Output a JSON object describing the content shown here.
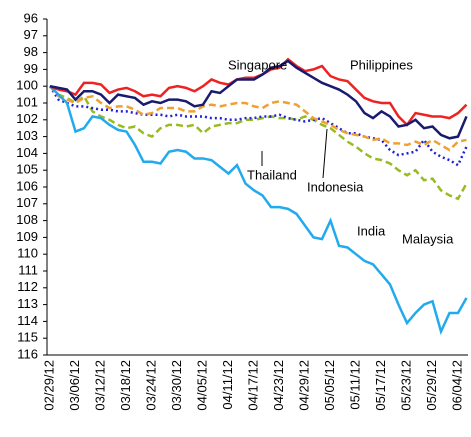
{
  "chart_data": {
    "type": "line",
    "categories": [
      "02/29/12",
      null,
      null,
      "03/06/12",
      null,
      null,
      "03/12/12",
      null,
      null,
      "03/18/12",
      null,
      null,
      "03/24/12",
      null,
      null,
      "03/30/12",
      null,
      null,
      "04/05/12",
      null,
      null,
      "04/11/12",
      null,
      null,
      "04/17/12",
      null,
      null,
      "04/23/12",
      null,
      null,
      "04/29/12",
      null,
      null,
      "05/05/12",
      null,
      null,
      "05/11/12",
      null,
      null,
      "05/17/12",
      null,
      null,
      "05/23/12",
      null,
      null,
      "05/29/12",
      null,
      null,
      "06/04/12",
      null
    ],
    "series": [
      {
        "name": "Singapore",
        "color": "#1a1a6e",
        "style": "solid",
        "values": [
          100,
          100.1,
          100.2,
          100.8,
          100.3,
          100.3,
          100.5,
          101,
          100.5,
          100.6,
          100.7,
          101.1,
          100.9,
          101,
          100.8,
          100.8,
          100.9,
          101.2,
          101.1,
          100.3,
          100.4,
          100,
          99.6,
          99.6,
          99.6,
          99.3,
          98.9,
          98.8,
          98.5,
          98.9,
          99.2,
          99.5,
          99.8,
          100,
          100.2,
          100.5,
          100.9,
          101.6,
          101.9,
          101.5,
          101.8,
          102.4,
          102.3,
          102,
          102.5,
          102.4,
          102.9,
          103.1,
          103,
          101.8
        ]
      },
      {
        "name": "Philippines",
        "color": "#ee2222",
        "style": "solid",
        "values": [
          100,
          100.2,
          100.3,
          100.5,
          99.8,
          99.8,
          99.9,
          100.4,
          100.2,
          100.1,
          100.3,
          100.6,
          100.5,
          100.6,
          100.1,
          100,
          100.1,
          100.3,
          100,
          99.6,
          99.8,
          99.9,
          99.6,
          99.5,
          99.5,
          99.3,
          99,
          98.9,
          98.4,
          98.8,
          99.1,
          99,
          98.8,
          99.4,
          99.6,
          99.7,
          100.2,
          100.7,
          100.9,
          101,
          101,
          101.8,
          102.3,
          101.6,
          101.7,
          101.8,
          101.8,
          101.9,
          101.6,
          101.1
        ]
      },
      {
        "name": "Thailand",
        "color": "#f0a030",
        "style": "dashed",
        "values": [
          100,
          100.6,
          100.8,
          101,
          100.7,
          100.6,
          101,
          101.3,
          101.2,
          101.2,
          101.4,
          101.7,
          101.6,
          101.3,
          101.3,
          101.3,
          101.5,
          101.5,
          101.2,
          101.1,
          101.2,
          101.1,
          101,
          101,
          101.2,
          101.3,
          101,
          100.9,
          101,
          101.1,
          101.5,
          101.9,
          102.1,
          102.3,
          102.6,
          102.8,
          102.9,
          103,
          103.2,
          103.1,
          103.4,
          103.4,
          103.5,
          103.3,
          103.5,
          103.2,
          103.5,
          103.8,
          103.3,
          103.2
        ]
      },
      {
        "name": "Indonesia",
        "color": "#2020dd",
        "style": "dotted",
        "values": [
          100,
          100.8,
          101,
          101.2,
          101.2,
          101.3,
          101.4,
          101.4,
          101.5,
          101.5,
          101.6,
          101.7,
          101.7,
          101.7,
          101.8,
          101.7,
          101.8,
          101.8,
          101.8,
          101.9,
          101.9,
          102,
          102,
          101.9,
          101.9,
          101.8,
          101.8,
          101.7,
          101.9,
          102,
          102.1,
          102,
          101.9,
          102.2,
          102.5,
          102.8,
          102.8,
          103,
          103.1,
          103.2,
          103.8,
          104.1,
          104,
          103.9,
          103.2,
          103.9,
          104.2,
          104.4,
          104.7,
          103.6
        ]
      },
      {
        "name": "Malaysia",
        "color": "#99bb22",
        "style": "dashed",
        "values": [
          100,
          100.5,
          100.7,
          101,
          100.6,
          101.5,
          101.8,
          102,
          102.3,
          102.5,
          102.4,
          102.8,
          103,
          102.5,
          102.3,
          102.3,
          102.4,
          102.3,
          102.8,
          102.4,
          102.3,
          102.2,
          102.2,
          102,
          102,
          101.9,
          101.8,
          101.9,
          101.9,
          102,
          101.8,
          102,
          102.3,
          102.5,
          102.9,
          103.3,
          103.6,
          104,
          104.3,
          104.4,
          104.6,
          105,
          105.3,
          105,
          105.6,
          105.5,
          106.2,
          106.5,
          106.7,
          105.8
        ]
      },
      {
        "name": "India",
        "color": "#22aaee",
        "style": "solid",
        "values": [
          100,
          100.5,
          101,
          102.7,
          102.5,
          101.8,
          101.9,
          102.3,
          102.6,
          102.7,
          103.5,
          104.5,
          104.5,
          104.6,
          103.9,
          103.8,
          103.9,
          104.3,
          104.3,
          104.4,
          104.8,
          105.2,
          104.7,
          105.8,
          106.2,
          106.5,
          107.2,
          107.2,
          107.3,
          107.6,
          108.3,
          109,
          109.1,
          108,
          109.5,
          109.6,
          110,
          110.4,
          110.6,
          111.2,
          111.8,
          113,
          114.1,
          113.5,
          113,
          112.8,
          114.6,
          113.5,
          113.5,
          112.6
        ]
      }
    ],
    "ylim": [
      96,
      116
    ],
    "y_inverted": true,
    "yticks": [
      96,
      97,
      98,
      99,
      100,
      101,
      102,
      103,
      104,
      105,
      106,
      107,
      108,
      109,
      110,
      111,
      112,
      113,
      114,
      115,
      116
    ]
  }
}
